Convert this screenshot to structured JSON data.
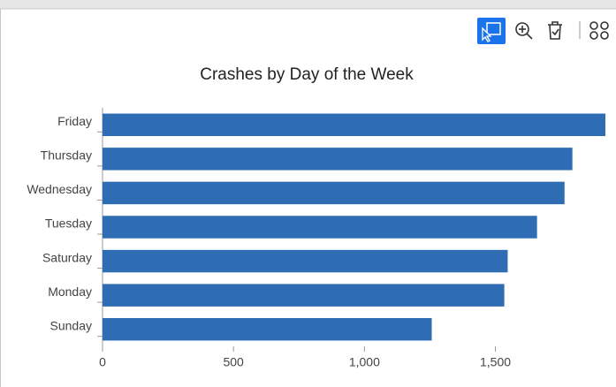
{
  "chart_data": {
    "type": "bar",
    "orientation": "horizontal",
    "title": "Crashes by Day of the Week",
    "categories": [
      "Friday",
      "Thursday",
      "Wednesday",
      "Tuesday",
      "Saturday",
      "Monday",
      "Sunday"
    ],
    "values": [
      1920,
      1794,
      1764,
      1659,
      1547,
      1534,
      1257
    ],
    "color": "#2e6db4",
    "xlim": [
      0,
      1920
    ],
    "xticks": [
      0,
      500,
      {
        "value": 1000,
        "label": "1,000"
      },
      {
        "value": 1500,
        "label": "1,500"
      }
    ]
  }
}
